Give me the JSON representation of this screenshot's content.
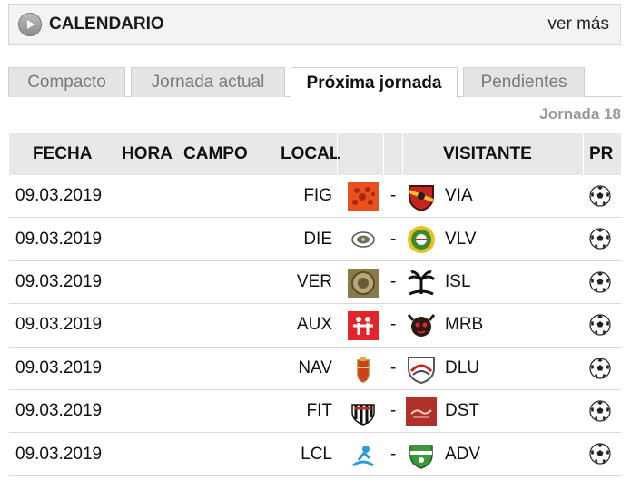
{
  "header": {
    "title": "CALENDARIO",
    "see_more": "ver más"
  },
  "tabs": [
    {
      "label": "Compacto"
    },
    {
      "label": "Jornada actual"
    },
    {
      "label": "Próxima jornada"
    },
    {
      "label": "Pendientes"
    }
  ],
  "round_label": "Jornada 18",
  "table": {
    "columns": [
      "FECHA",
      "HORA",
      "CAMPO",
      "LOCAL",
      "VISITANTE",
      "PR"
    ],
    "rows": [
      {
        "date": "09.03.2019",
        "home": "FIG",
        "sep": "-",
        "away": "VIA"
      },
      {
        "date": "09.03.2019",
        "home": "DIE",
        "sep": "-",
        "away": "VLV"
      },
      {
        "date": "09.03.2019",
        "home": "VER",
        "sep": "-",
        "away": "ISL"
      },
      {
        "date": "09.03.2019",
        "home": "AUX",
        "sep": "-",
        "away": "MRB"
      },
      {
        "date": "09.03.2019",
        "home": "NAV",
        "sep": "-",
        "away": "DLU"
      },
      {
        "date": "09.03.2019",
        "home": "FIT",
        "sep": "-",
        "away": "DST"
      },
      {
        "date": "09.03.2019",
        "home": "LCL",
        "sep": "-",
        "away": "ADV"
      }
    ]
  },
  "icons": {
    "header": "play-circle-icon",
    "prediction": "soccer-ball-icon"
  },
  "colors": {
    "header_bg": "#f3f3f3",
    "tab_bg": "#e4e4e4",
    "table_header_bg": "#e8e8e8",
    "muted_text": "#9a9a9a"
  }
}
